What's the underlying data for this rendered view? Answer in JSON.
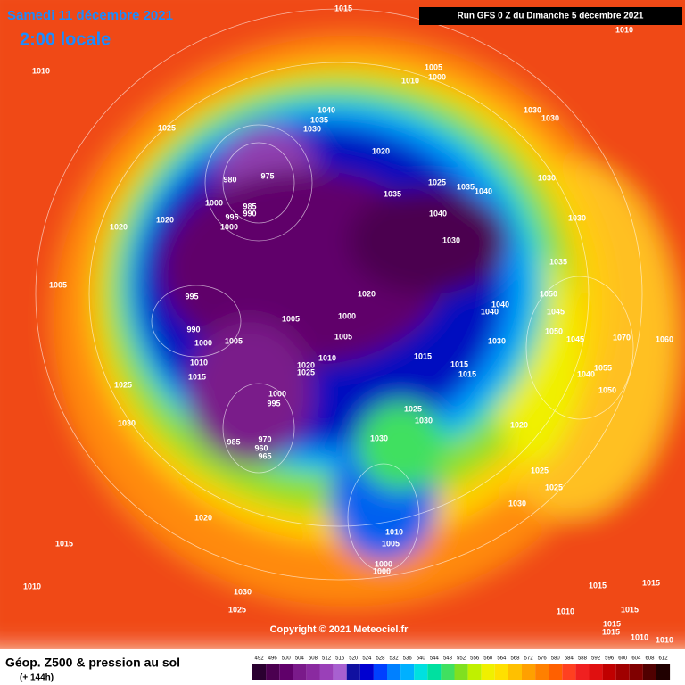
{
  "header": {
    "date": "Samedi 11 décembre 2021",
    "time": "2:00 locale",
    "run": "Run GFS 0 Z du Dimanche 5 décembre 2021"
  },
  "map": {
    "copyright": "Copyright © 2021 Meteociel.fr",
    "pressure_labels": [
      1015,
      1010,
      1010,
      1005,
      1000,
      1010,
      1040,
      1035,
      1030,
      1030,
      1030,
      1025,
      1020,
      980,
      975,
      985,
      995,
      990,
      1000,
      1000,
      1035,
      1025,
      1035,
      1040,
      1040,
      1030,
      1030,
      1020,
      1020,
      1030,
      1035,
      1005,
      995,
      1020,
      1050,
      1040,
      1040,
      1045,
      1005,
      1000,
      990,
      1005,
      1000,
      1005,
      1030,
      1050,
      1045,
      1015,
      1010,
      1010,
      1020,
      1025,
      1015,
      1015,
      1015,
      1055,
      1040,
      1025,
      1000,
      995,
      1050,
      1025,
      1030,
      1030,
      1020,
      970,
      985,
      960,
      965,
      1030,
      1025,
      1025,
      1030,
      1020,
      1010,
      1005,
      1015,
      1000,
      1000,
      1010,
      1015,
      1030,
      1015,
      1010,
      1025,
      1015,
      1015,
      1015,
      1010,
      1010,
      1060,
      1070
    ]
  },
  "footer": {
    "title": "Géop. Z500 & pression au sol",
    "lead": "(+ 144h)",
    "scale": {
      "ticks": [
        492,
        496,
        500,
        504,
        508,
        512,
        516,
        520,
        524,
        528,
        532,
        536,
        540,
        544,
        548,
        552,
        556,
        560,
        564,
        568,
        572,
        576,
        580,
        584,
        588,
        592,
        596,
        600,
        604,
        608,
        612
      ],
      "colors": [
        "#2a0030",
        "#4b0050",
        "#60006a",
        "#7a1a8a",
        "#8a2aa0",
        "#9a40b8",
        "#a860d0",
        "#1010a0",
        "#0000d0",
        "#0040ff",
        "#0080ff",
        "#00b0ff",
        "#00e0e0",
        "#00e0a0",
        "#40e060",
        "#80e020",
        "#c0f000",
        "#f0f000",
        "#ffe000",
        "#ffc000",
        "#ffa000",
        "#ff8000",
        "#ff6000",
        "#ff4020",
        "#f02020",
        "#e01010",
        "#c00000",
        "#a00000",
        "#800000",
        "#500000",
        "#200000"
      ]
    }
  }
}
